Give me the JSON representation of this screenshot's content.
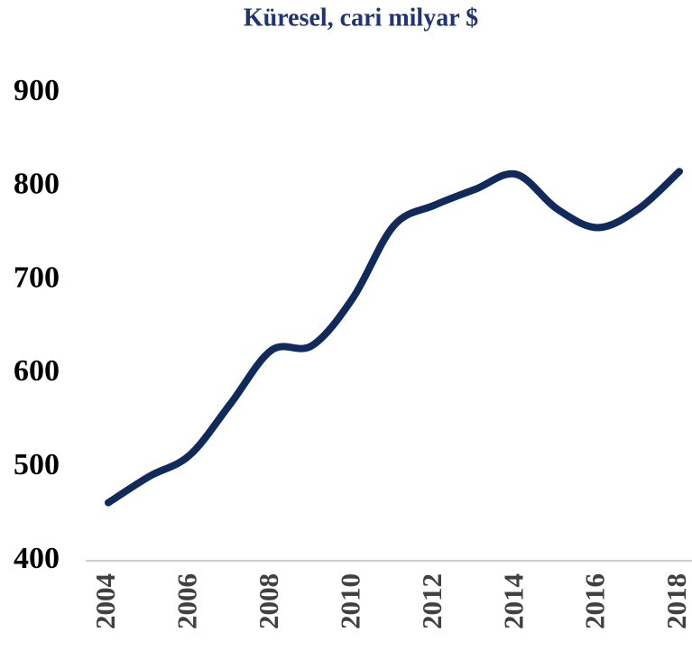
{
  "chart_data": {
    "type": "line",
    "title": "Küresel, cari milyar $",
    "x": [
      2004,
      2005,
      2006,
      2007,
      2008,
      2009,
      2010,
      2011,
      2012,
      2013,
      2014,
      2015,
      2016,
      2017,
      2018
    ],
    "series": [
      {
        "name": "Küresel",
        "color": "#102a5c",
        "values": [
          462,
          490,
          513,
          568,
          625,
          630,
          681,
          758,
          780,
          797,
          813,
          776,
          756,
          776,
          816
        ]
      }
    ],
    "xlim": [
      2004,
      2018
    ],
    "xticks": [
      2004,
      2006,
      2008,
      2010,
      2012,
      2014,
      2016,
      2018
    ],
    "ylim": [
      400,
      900
    ],
    "yticks": [
      400,
      500,
      600,
      700,
      800,
      900
    ],
    "smooth": true
  }
}
